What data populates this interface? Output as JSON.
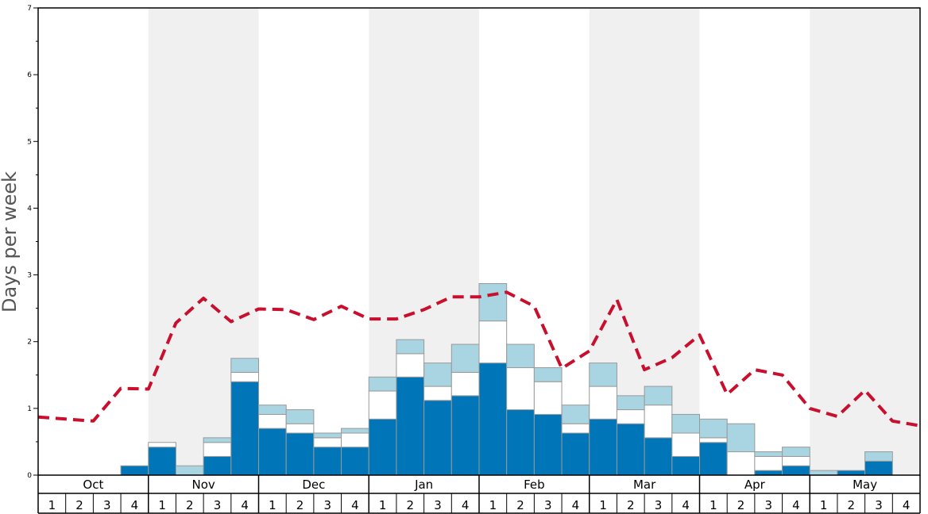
{
  "chart_data": {
    "type": "bar",
    "subtype": "stacked-bar-with-line",
    "ylabel": "Days per week",
    "ylim": [
      0,
      7
    ],
    "yticks": [
      "0",
      "1",
      "2",
      "3",
      "4",
      "5",
      "6",
      "7"
    ],
    "months": [
      "Oct",
      "Nov",
      "Dec",
      "Jan",
      "Feb",
      "Mar",
      "Apr",
      "May"
    ],
    "week_labels": [
      "1",
      "2",
      "3",
      "4"
    ],
    "shaded_months": [
      "Nov",
      "Jan",
      "Mar",
      "May"
    ],
    "grid": false,
    "series": [
      {
        "role": "bottom",
        "color": "#0075b8",
        "values": [
          0,
          0,
          0,
          0.14,
          0.42,
          0,
          0.28,
          1.4,
          0.7,
          0.63,
          0.42,
          0.42,
          0.84,
          1.47,
          1.12,
          1.19,
          1.68,
          0.98,
          0.91,
          0.63,
          0.84,
          0.77,
          0.56,
          0.28,
          0.49,
          0,
          0.07,
          0.14,
          0,
          0.07,
          0.21,
          0
        ]
      },
      {
        "role": "middle",
        "color": "#ffffff",
        "values": [
          0,
          0,
          0,
          0,
          0.07,
          0,
          0.21,
          0.14,
          0.21,
          0.14,
          0.14,
          0.21,
          0.42,
          0.35,
          0.21,
          0.35,
          0.63,
          0.63,
          0.49,
          0.14,
          0.49,
          0.21,
          0.49,
          0.35,
          0.07,
          0.35,
          0.21,
          0.14,
          0,
          0,
          0,
          0
        ]
      },
      {
        "role": "top",
        "color": "#a9d4e2",
        "values": [
          0,
          0,
          0,
          0,
          0,
          0.14,
          0.07,
          0.21,
          0.14,
          0.21,
          0.07,
          0.07,
          0.21,
          0.21,
          0.35,
          0.42,
          0.56,
          0.35,
          0.21,
          0.28,
          0.35,
          0.21,
          0.28,
          0.28,
          0.28,
          0.42,
          0.07,
          0.14,
          0.07,
          0,
          0.14,
          0
        ]
      }
    ],
    "line": {
      "color": "#c8102e",
      "style": "dashed",
      "values": [
        0.87,
        0.84,
        0.81,
        1.3,
        1.29,
        2.28,
        2.65,
        2.3,
        2.49,
        2.48,
        2.33,
        2.53,
        2.34,
        2.34,
        2.48,
        2.67,
        2.67,
        2.74,
        2.53,
        1.6,
        1.86,
        2.63,
        1.58,
        1.76,
        2.1,
        1.21,
        1.58,
        1.5,
        1.0,
        0.88,
        1.27,
        0.81,
        0.74
      ]
    }
  },
  "colors": {
    "shade": "#f0f0f0",
    "bar_outline": "#999999",
    "axis": "#000000"
  }
}
